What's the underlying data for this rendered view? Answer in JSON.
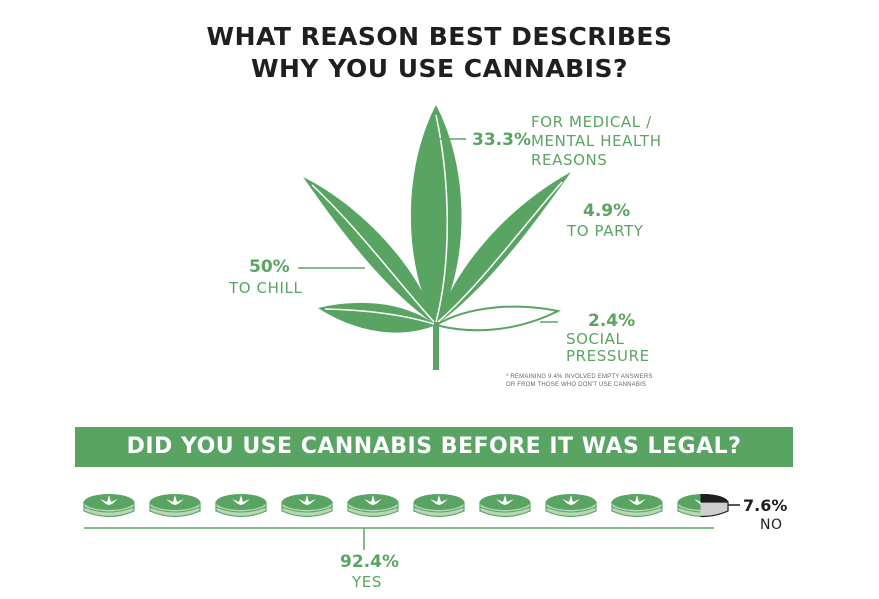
{
  "title": {
    "line1": "WHAT REASON BEST DESCRIBES",
    "line2": "WHY YOU USE CANNABIS?"
  },
  "chart_data": [
    {
      "type": "pie",
      "title": "WHAT REASON BEST DESCRIBES WHY YOU USE CANNABIS?",
      "slices": [
        {
          "value": "33.3%",
          "label_lines": [
            "FOR MEDICAL /",
            "MENTAL HEALTH",
            "REASONS"
          ]
        },
        {
          "value": "4.9%",
          "label_lines": [
            "TO PARTY"
          ]
        },
        {
          "value": "50%",
          "label_lines": [
            "TO CHILL"
          ]
        },
        {
          "value": "2.4%",
          "label_lines": [
            "SOCIAL",
            "PRESSURE"
          ]
        }
      ],
      "footnote_lines": [
        "* REMAINING 9.4% INVOLVED EMPTY ANSWERS",
        "OR FROM THOSE WHO DON'T USE CANNABIS"
      ]
    },
    {
      "type": "bar",
      "title": "DID YOU USE CANNABIS BEFORE IT WAS LEGAL?",
      "units": 10,
      "yes": {
        "value": "92.4%",
        "label": "YES"
      },
      "no": {
        "value": "7.6%",
        "label": "NO"
      },
      "yes_fraction": 0.924
    }
  ],
  "colors": {
    "green": "#5aa463",
    "light_green": "#b6d8b6",
    "dark": "#1f1f1f"
  }
}
